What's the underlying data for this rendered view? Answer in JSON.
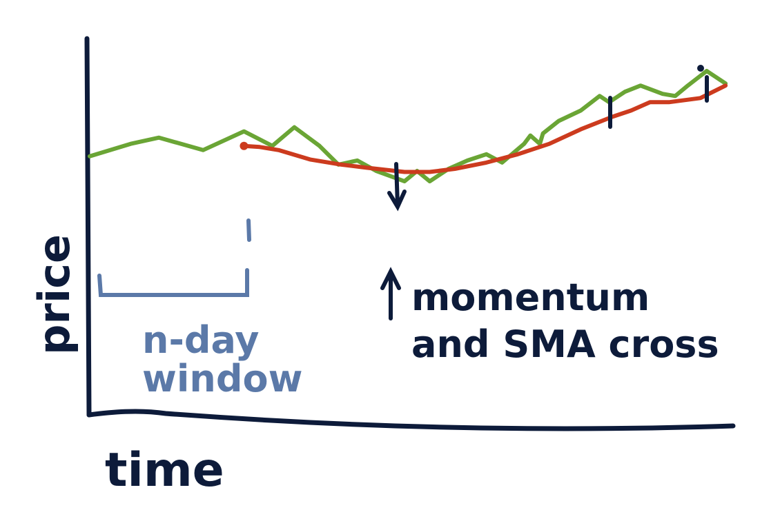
{
  "chart_data": {
    "type": "line",
    "title": "",
    "xlabel": "time",
    "ylabel": "price",
    "xlim": [
      0,
      100
    ],
    "ylim": [
      0,
      100
    ],
    "grid": false,
    "series": [
      {
        "key": "price",
        "color": "#6aa535",
        "x": [
          0,
          6.5,
          11,
          18,
          24.5,
          29,
          32.5,
          36.5,
          39.5,
          42.5,
          45.5,
          50,
          52,
          54,
          57,
          60,
          63,
          65.5,
          69,
          70,
          71.5,
          72,
          74.5,
          78,
          81,
          82.5,
          85,
          87.5,
          91,
          93,
          95,
          98,
          101
        ],
        "y": [
          58,
          64,
          67,
          61,
          70,
          63,
          72,
          63,
          54,
          56,
          51,
          46,
          51,
          46,
          52,
          56,
          59,
          55,
          64,
          68,
          64,
          69,
          75,
          80,
          87,
          84,
          89,
          92,
          88,
          87,
          92,
          99,
          93
        ]
      },
      {
        "key": "sma",
        "color": "#cc3b1e",
        "x": [
          24.5,
          27,
          30,
          35,
          40,
          44,
          50,
          54,
          58,
          63,
          68,
          73,
          78,
          83,
          86,
          89,
          92,
          97,
          101
        ],
        "y": [
          63,
          62.5,
          61,
          56.5,
          54,
          52.5,
          50.5,
          50.5,
          52,
          55,
          59,
          64,
          71,
          77,
          80,
          84,
          84,
          86,
          92
        ]
      }
    ],
    "annotations": [
      {
        "key": "window",
        "label_line1": "n-day",
        "label_line2": "window",
        "x_start": 0,
        "x_end": 24.5
      },
      {
        "key": "cross",
        "label_line1": "momentum",
        "label_line2": "and SMA cross",
        "x": 47,
        "y": 51
      }
    ]
  }
}
